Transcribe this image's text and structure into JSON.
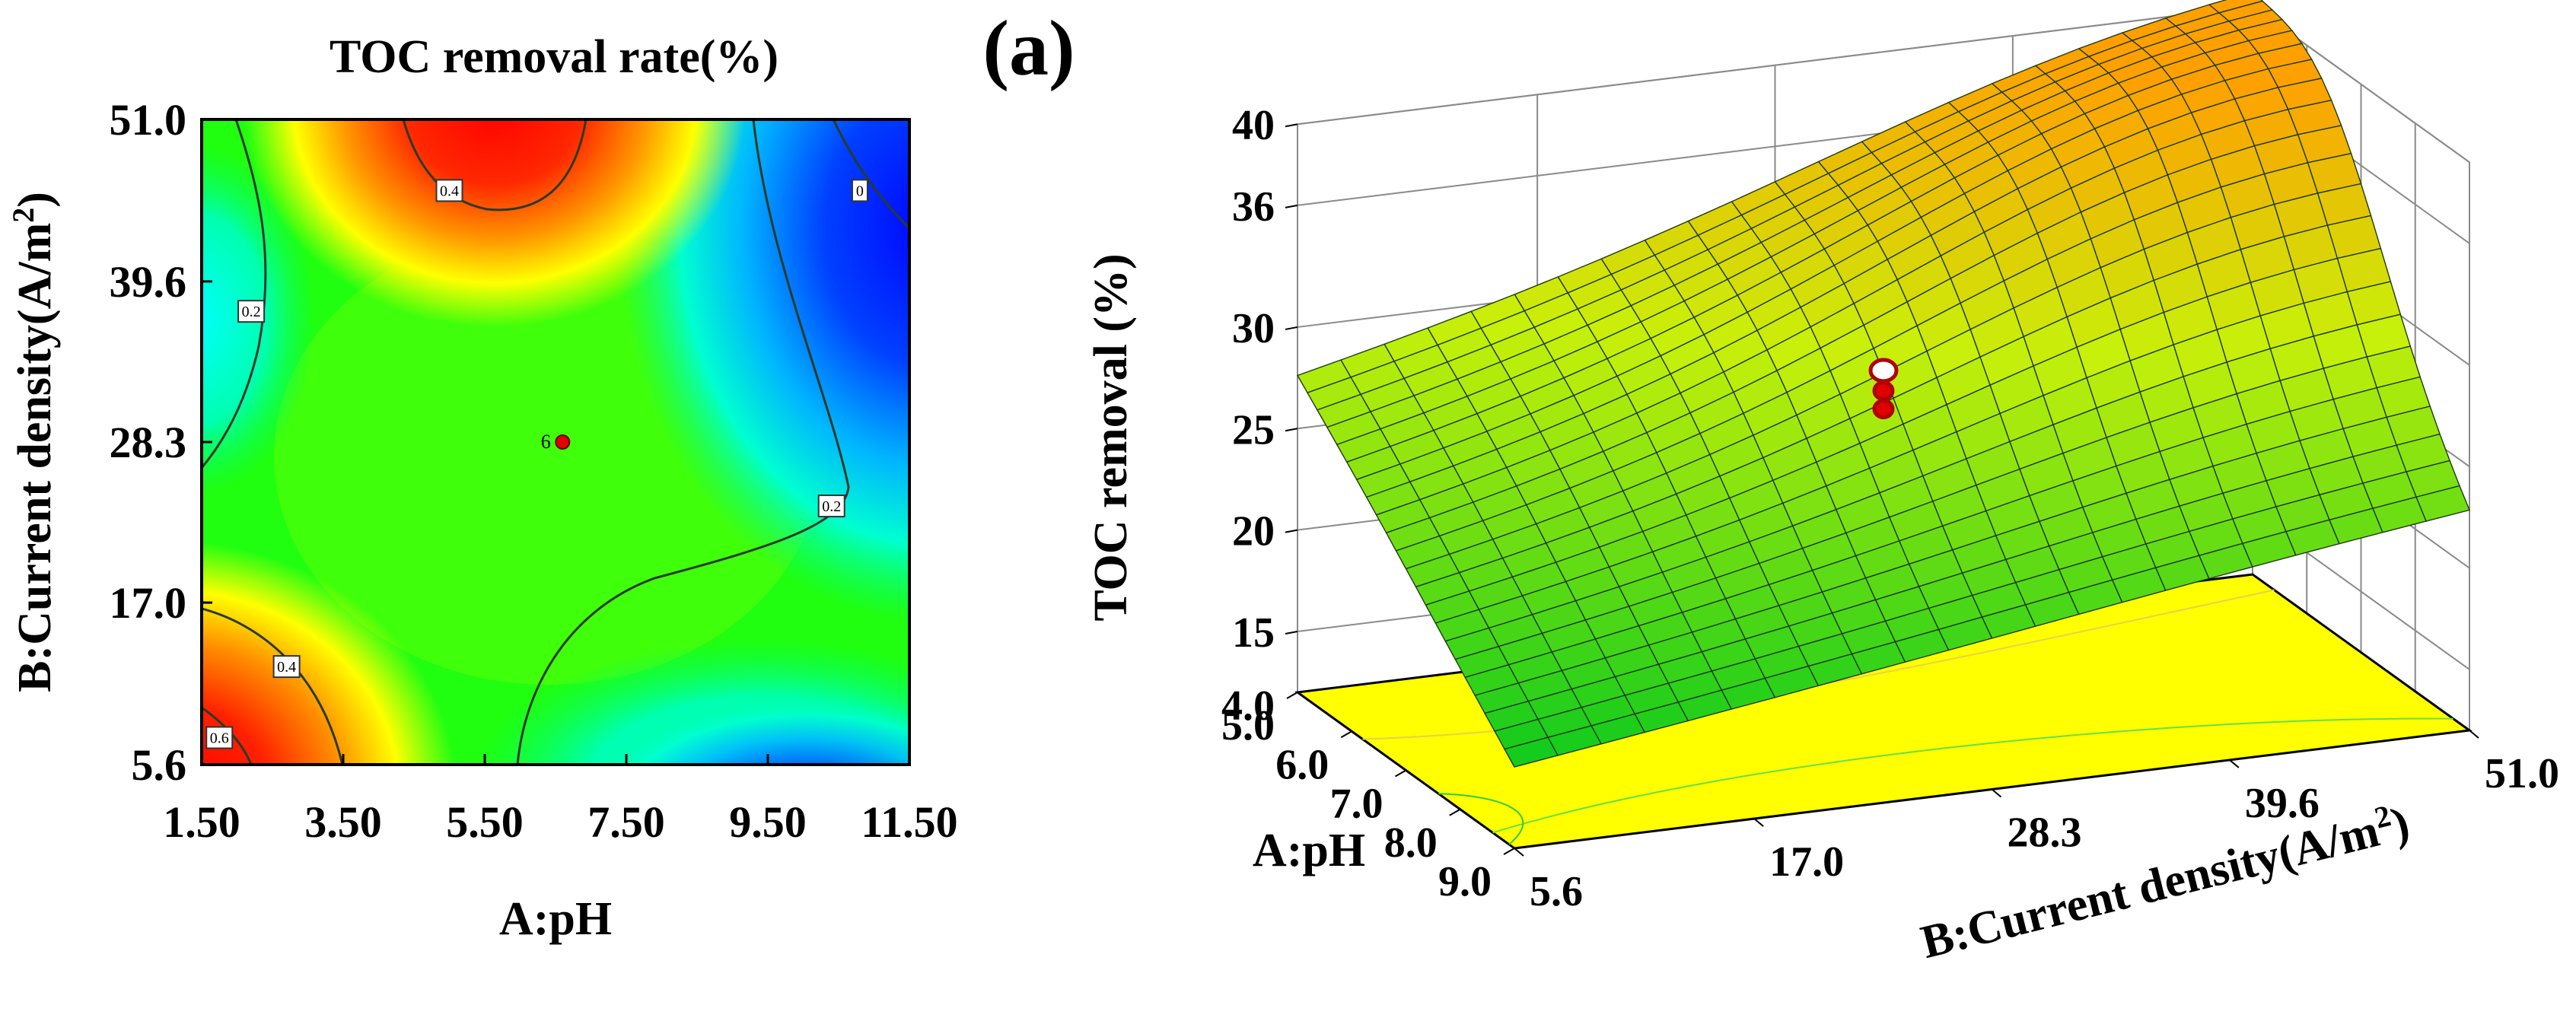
{
  "panel_label": "(a)",
  "chart_data": [
    {
      "type": "heatmap",
      "subtype": "contour",
      "title": "TOC removal rate(%)",
      "xlabel": "A:pH",
      "ylabel_main": "B:Current density(A/m",
      "ylabel_sup": "2",
      "ylabel_tail": ")",
      "xlim": [
        1.5,
        11.5
      ],
      "ylim": [
        5.6,
        51.0
      ],
      "x_ticks": [
        "1.50",
        "3.50",
        "5.50",
        "7.50",
        "9.50",
        "11.50"
      ],
      "y_ticks": [
        "5.6",
        "17.0",
        "28.3",
        "39.6",
        "51.0"
      ],
      "contour_labels": [
        {
          "text": "0.4",
          "x": 5.0,
          "y": 46.0
        },
        {
          "text": "0",
          "x": 10.8,
          "y": 46.0
        },
        {
          "text": "0.2",
          "x": 2.2,
          "y": 37.5
        },
        {
          "text": "0.2",
          "x": 10.4,
          "y": 23.8
        },
        {
          "text": "0.4",
          "x": 2.7,
          "y": 12.5
        },
        {
          "text": "0.6",
          "x": 1.75,
          "y": 7.5
        }
      ],
      "design_point": {
        "label": "6",
        "x": 6.6,
        "y": 28.3
      },
      "colorscale": [
        "#0000ff",
        "#00ffff",
        "#00ff00",
        "#ffff00",
        "#ff0000"
      ]
    },
    {
      "type": "surface3d",
      "zlabel": "TOC removal (%)",
      "xlabel": "A:pH",
      "ylabel_main": "B:Current density(A/m",
      "ylabel_sup": "2",
      "ylabel_tail": ")",
      "z_ticks": [
        "15",
        "20",
        "25",
        "30",
        "36",
        "40"
      ],
      "z_tick_values": [
        15,
        20,
        25,
        30,
        36,
        40
      ],
      "zlim": [
        12,
        40
      ],
      "floor_label": "4.0",
      "x_ticks": [
        "5.0",
        "6.0",
        "7.0",
        "8.0",
        "9.0"
      ],
      "xlim": [
        5.0,
        9.0
      ],
      "y_ticks": [
        "5.6",
        "17.0",
        "28.3",
        "39.6",
        "51.0"
      ],
      "ylim": [
        5.6,
        51.0
      ],
      "corners": {
        "pH5_cd5.6": 27.5,
        "pH5_cd51": 37.5,
        "pH9_cd5.6": 16.0,
        "pH9_cd51": 22.5
      },
      "peak": {
        "pH": 6.3,
        "cd": 46.0,
        "value": 38.5
      },
      "design_points": [
        {
          "pH": 7.0,
          "cd": 28.3,
          "value": 28.8
        },
        {
          "pH": 7.0,
          "cd": 28.3,
          "value": 27.8
        },
        {
          "pH": 7.0,
          "cd": 28.3,
          "value": 26.9
        }
      ],
      "colors": {
        "low": "#00c832",
        "high": "#ffa000",
        "floor": "#ffff00"
      }
    }
  ]
}
